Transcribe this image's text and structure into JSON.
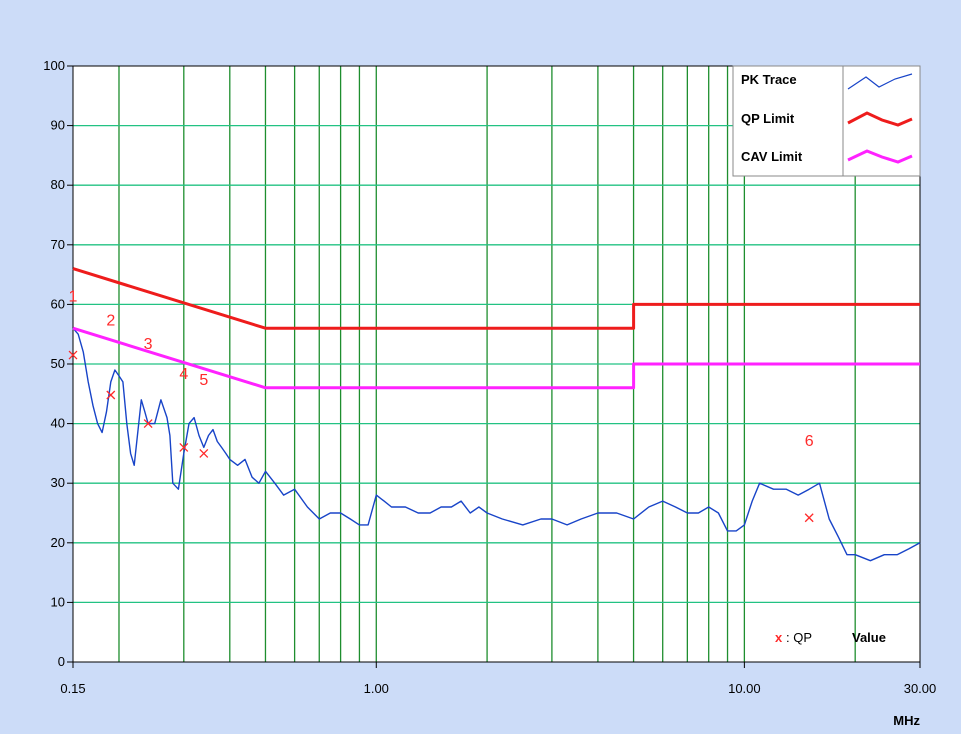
{
  "chart_data": {
    "type": "line",
    "x_unit": "MHz",
    "x_scale": "log",
    "xlim": [
      0.15,
      30
    ],
    "ylim": [
      0,
      100
    ],
    "x_tick_labels": [
      "0.15",
      "1.00",
      "10.00",
      "30.00"
    ],
    "y_tick_labels": [
      "0",
      "10",
      "20",
      "30",
      "40",
      "50",
      "60",
      "70",
      "80",
      "90",
      "100"
    ],
    "legend_position": "top-right",
    "series": [
      {
        "name": "PK Trace",
        "color": "#1844c8",
        "x": [
          0.15,
          0.155,
          0.16,
          0.165,
          0.17,
          0.175,
          0.18,
          0.185,
          0.19,
          0.195,
          0.2,
          0.205,
          0.21,
          0.215,
          0.22,
          0.23,
          0.235,
          0.24,
          0.25,
          0.255,
          0.26,
          0.27,
          0.275,
          0.28,
          0.29,
          0.3,
          0.31,
          0.32,
          0.33,
          0.34,
          0.35,
          0.36,
          0.37,
          0.38,
          0.39,
          0.4,
          0.42,
          0.44,
          0.46,
          0.48,
          0.5,
          0.53,
          0.56,
          0.6,
          0.65,
          0.7,
          0.75,
          0.8,
          0.85,
          0.9,
          0.95,
          1.0,
          1.05,
          1.1,
          1.2,
          1.3,
          1.4,
          1.5,
          1.6,
          1.7,
          1.8,
          1.9,
          2.0,
          2.2,
          2.5,
          2.8,
          3.0,
          3.3,
          3.6,
          4.0,
          4.5,
          5.0,
          5.5,
          6.0,
          6.5,
          7.0,
          7.5,
          8.0,
          8.5,
          9.0,
          9.5,
          10.0,
          10.5,
          11.0,
          12.0,
          13.0,
          14.0,
          15.0,
          16.0,
          17.0,
          18.0,
          19.0,
          20.0,
          22.0,
          24.0,
          26.0,
          28.0,
          30.0
        ],
        "y": [
          56,
          55,
          52,
          47,
          43,
          40,
          38.5,
          42,
          47,
          49,
          48,
          47,
          40,
          35,
          33,
          44,
          42,
          40,
          40,
          42,
          44,
          41,
          38,
          30,
          29,
          35,
          40,
          41,
          38,
          36,
          38,
          39,
          37,
          36,
          35,
          34,
          33,
          34,
          31,
          30,
          32,
          30,
          28,
          29,
          26,
          24,
          25,
          25,
          24,
          23,
          23,
          28,
          27,
          26,
          26,
          25,
          25,
          26,
          26,
          27,
          25,
          26,
          25,
          24,
          23,
          24,
          24,
          23,
          24,
          25,
          25,
          24,
          26,
          27,
          26,
          25,
          25,
          26,
          25,
          22,
          22,
          23,
          27,
          30,
          29,
          29,
          28,
          29,
          30,
          24,
          21,
          18,
          18,
          17,
          18,
          18,
          19,
          20
        ],
        "style": "thin"
      },
      {
        "name": "QP Limit",
        "color": "#ee1c1c",
        "x": [
          0.15,
          0.5,
          5.0,
          5.0,
          30.0
        ],
        "y": [
          66,
          56,
          56,
          60,
          60
        ],
        "style": "thick"
      },
      {
        "name": "CAV Limit",
        "color": "#ff22ff",
        "x": [
          0.15,
          0.5,
          5.0,
          5.0,
          30.0
        ],
        "y": [
          56,
          46,
          46,
          50,
          50
        ],
        "style": "thick"
      }
    ],
    "qp_points": {
      "color": "#ff2a2a",
      "x": [
        0.15,
        0.19,
        0.24,
        0.3,
        0.34,
        15.0
      ],
      "y": [
        51.5,
        44.8,
        40.0,
        36.0,
        35.0,
        24.2
      ]
    },
    "markers": [
      {
        "label": "1",
        "x": 0.15,
        "y": 60.5
      },
      {
        "label": "2",
        "x": 0.19,
        "y": 56.5
      },
      {
        "label": "3",
        "x": 0.24,
        "y": 52.5
      },
      {
        "label": "4",
        "x": 0.3,
        "y": 47.5
      },
      {
        "label": "5",
        "x": 0.34,
        "y": 46.5
      },
      {
        "label": "6",
        "x": 15.0,
        "y": 36.2
      }
    ],
    "vertical_gridlines": [
      0.2,
      0.3,
      0.4,
      0.5,
      0.6,
      0.7,
      0.8,
      0.9,
      1.0,
      2.0,
      3.0,
      4.0,
      5.0,
      6.0,
      7.0,
      8.0,
      9.0,
      10.0,
      20.0
    ],
    "horizontal_gridlines": [
      10,
      20,
      30,
      40,
      50,
      60,
      70,
      80,
      90
    ],
    "gridline_color": "#1e8e2e",
    "horizontal_gridline_color": "#22c283"
  },
  "note": {
    "qp_symbol": "x",
    "qp_label": ": QP",
    "value_label": "Value"
  }
}
